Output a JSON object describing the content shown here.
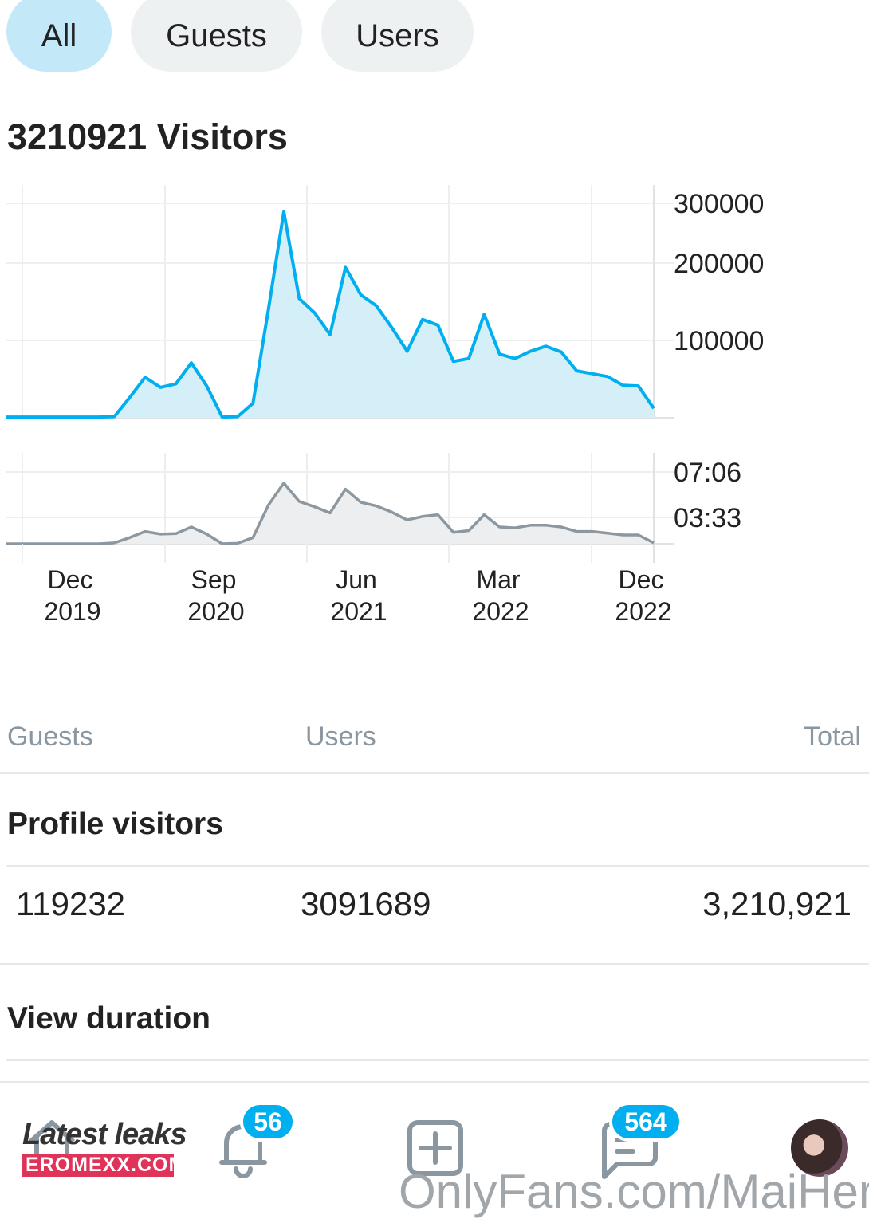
{
  "tabs": [
    {
      "label": "All",
      "active": true
    },
    {
      "label": "Guests",
      "active": false
    },
    {
      "label": "Users",
      "active": false
    }
  ],
  "visitors_title": "3210921 Visitors",
  "chart_data": [
    {
      "type": "area",
      "series": [
        {
          "values": [
            1000,
            1000,
            1000,
            1000,
            1000,
            1000,
            1000,
            1500,
            28000,
            56000,
            42000,
            47000,
            76000,
            44000,
            1000,
            1500,
            20000,
            150000,
            285000,
            165000,
            145000,
            115000,
            208000,
            170000,
            155000,
            125000,
            92000,
            136000,
            128000,
            78000,
            82000,
            143000,
            88000,
            82000,
            92000,
            99000,
            91000,
            65000,
            61000,
            57000,
            45000,
            44000,
            13000
          ]
        }
      ],
      "y_ticks": [
        "300000",
        "200000",
        "100000"
      ],
      "ylim": [
        0,
        300000
      ],
      "color": "#00aff0",
      "fill": "#d5eff9",
      "grid": true
    },
    {
      "type": "area",
      "series": [
        {
          "values": [
            0,
            0,
            0,
            0,
            0,
            0,
            0,
            10,
            70,
            140,
            110,
            115,
            190,
            110,
            0,
            5,
            70,
            440,
            690,
            480,
            420,
            350,
            620,
            470,
            430,
            360,
            270,
            310,
            330,
            130,
            150,
            330,
            190,
            180,
            210,
            210,
            190,
            140,
            140,
            120,
            100,
            100,
            10
          ]
        }
      ],
      "y_ticks": [
        "07:06",
        "03:33"
      ],
      "ylim": [
        0,
        852
      ],
      "color": "#8c979f",
      "fill": "#eceef0",
      "grid": true
    }
  ],
  "x_ticks": [
    {
      "month": "Dec",
      "year": "2019"
    },
    {
      "month": "Sep",
      "year": "2020"
    },
    {
      "month": "Jun",
      "year": "2021"
    },
    {
      "month": "Mar",
      "year": "2022"
    },
    {
      "month": "Dec",
      "year": "2022"
    }
  ],
  "table": {
    "headers": [
      "Guests",
      "Users",
      "Total"
    ],
    "profile_visitors": {
      "title": "Profile visitors",
      "guests": "119232",
      "users": "3091689",
      "total": "3,210,921"
    },
    "view_duration": {
      "title": "View duration"
    }
  },
  "nav": {
    "notifications_badge": "56",
    "messages_badge": "564"
  },
  "watermark": {
    "title": "Latest leaks",
    "site": "EROMEXX.COM",
    "overlay_text": "OnlyFans.com/MaiHer"
  },
  "colors": {
    "accent": "#00aff0",
    "active_tab": "#c3e9f8",
    "inactive_tab": "#eef1f2"
  }
}
